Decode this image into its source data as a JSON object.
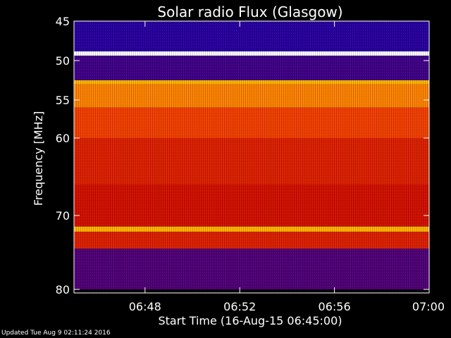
{
  "updated_text": "Updated Tue Aug  9 02:11:24 2016",
  "chart_data": {
    "type": "heatmap",
    "title": "Solar radio Flux (Glasgow)",
    "xlabel": "Start Time (16-Aug-15 06:45:00)",
    "ylabel": "Frequency [MHz]",
    "x_range": [
      "06:45",
      "07:00"
    ],
    "x_ticks": [
      "06:48",
      "06:52",
      "06:56",
      "07:00"
    ],
    "y_range": [
      45,
      80
    ],
    "y_scale": "nonlinear",
    "y_ticks": [
      45,
      50,
      55,
      60,
      70,
      80
    ],
    "colormap": [
      "#0000c8",
      "#c80000",
      "#ff5000",
      "#ffd000",
      "#ffffff"
    ],
    "bands": [
      {
        "from": 45,
        "to": 48.7,
        "level": 0.05
      },
      {
        "from": 48.7,
        "to": 49.3,
        "level": 1.0
      },
      {
        "from": 49.3,
        "to": 52.5,
        "level": 0.08
      },
      {
        "from": 52.5,
        "to": 53.0,
        "level": 0.7
      },
      {
        "from": 53.0,
        "to": 56.0,
        "level": 0.6
      },
      {
        "from": 56.0,
        "to": 60.0,
        "level": 0.45
      },
      {
        "from": 60.0,
        "to": 66.0,
        "level": 0.35
      },
      {
        "from": 66.0,
        "to": 71.5,
        "level": 0.3
      },
      {
        "from": 71.5,
        "to": 72.2,
        "level": 0.7
      },
      {
        "from": 72.2,
        "to": 74.5,
        "level": 0.35
      },
      {
        "from": 74.5,
        "to": 80.0,
        "level": 0.1
      }
    ]
  }
}
